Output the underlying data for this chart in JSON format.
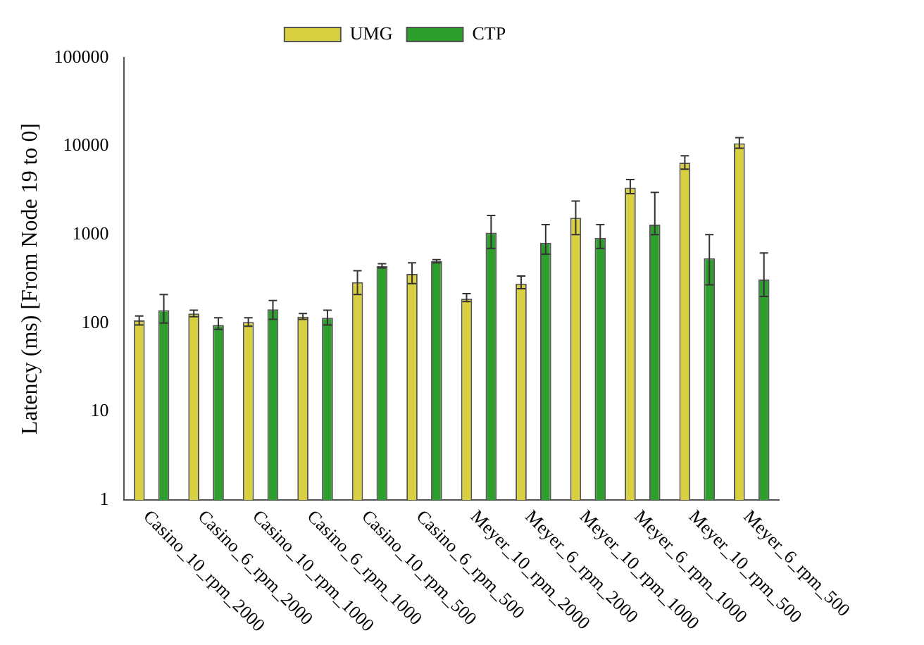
{
  "chart_data": {
    "type": "bar",
    "ylabel": "Latency (ms) [From Node 19 to 0]",
    "categories": [
      "Casino_10_rpm_2000",
      "Casino_6_rpm_2000",
      "Casino_10_rpm_1000",
      "Casino_6_rpm_1000",
      "Casino_10_rpm_500",
      "Casino_6_rpm_500",
      "Meyer_10_rpm_2000",
      "Meyer_6_rpm_2000",
      "Meyer_10_rpm_1000",
      "Meyer_6_rpm_1000",
      "Meyer_10_rpm_500",
      "Meyer_6_rpm_500"
    ],
    "series": [
      {
        "name": "UMG",
        "color": "#d8d040",
        "values": [
          107,
          128,
          103,
          118,
          290,
          360,
          188,
          280,
          1550,
          3400,
          6500,
          10800
        ],
        "errors": [
          [
            95,
            120
          ],
          [
            118,
            140
          ],
          [
            92,
            115
          ],
          [
            110,
            128
          ],
          [
            210,
            390
          ],
          [
            280,
            480
          ],
          [
            175,
            215
          ],
          [
            245,
            340
          ],
          [
            1000,
            2400
          ],
          [
            2900,
            4200
          ],
          [
            5500,
            7800
          ],
          [
            9500,
            12500
          ]
        ]
      },
      {
        "name": "CTP",
        "color": "#2e9e2e",
        "values": [
          140,
          95,
          143,
          115,
          440,
          500,
          1050,
          810,
          920,
          1300,
          540,
          310
        ],
        "errors": [
          [
            100,
            210
          ],
          [
            85,
            115
          ],
          [
            110,
            180
          ],
          [
            95,
            140
          ],
          [
            420,
            470
          ],
          [
            480,
            520
          ],
          [
            700,
            1650
          ],
          [
            600,
            1300
          ],
          [
            700,
            1300
          ],
          [
            1000,
            3000
          ],
          [
            270,
            1000
          ],
          [
            200,
            620
          ]
        ]
      }
    ],
    "log": true,
    "ylim": [
      1,
      100000
    ],
    "yticks": [
      1,
      10,
      100,
      1000,
      10000,
      100000
    ],
    "grid": false,
    "legend": "top"
  }
}
